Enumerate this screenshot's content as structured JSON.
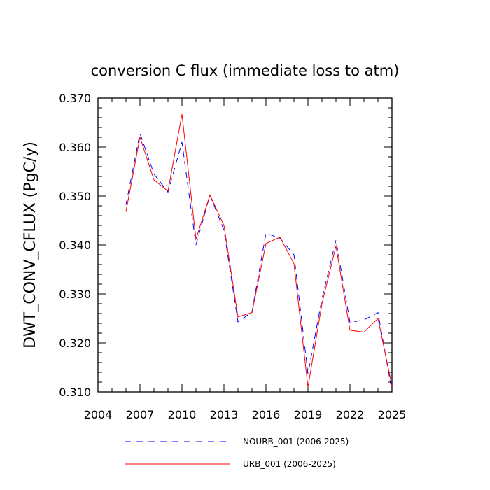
{
  "chart_data": {
    "type": "line",
    "title": "conversion C flux (immediate loss to atm)",
    "xlabel": "",
    "ylabel": "DWT_CONV_CFLUX  (PgC/y)",
    "xlim": [
      2004,
      2025
    ],
    "ylim": [
      0.31,
      0.37
    ],
    "xticks": [
      "2004",
      "2007",
      "2010",
      "2013",
      "2016",
      "2019",
      "2022",
      "2025"
    ],
    "yticks": [
      "0.310",
      "0.320",
      "0.330",
      "0.340",
      "0.350",
      "0.360",
      "0.370"
    ],
    "x": [
      2006,
      2007,
      2008,
      2009,
      2010,
      2011,
      2012,
      2013,
      2014,
      2015,
      2016,
      2017,
      2018,
      2019,
      2020,
      2021,
      2022,
      2023,
      2024,
      2025
    ],
    "series": [
      {
        "name": "NOURB_001 (2006-2025)",
        "color": "#0000ff",
        "dash": "dashed",
        "values": [
          0.3482,
          0.3628,
          0.3545,
          0.3508,
          0.361,
          0.34,
          0.3502,
          0.343,
          0.3243,
          0.3263,
          0.3424,
          0.3414,
          0.338,
          0.3137,
          0.329,
          0.341,
          0.3242,
          0.3247,
          0.3262,
          0.3102
        ]
      },
      {
        "name": "URB_001 (2006-2025)",
        "color": "#ff0000",
        "dash": "solid",
        "values": [
          0.3468,
          0.362,
          0.3533,
          0.351,
          0.3667,
          0.3412,
          0.3502,
          0.344,
          0.3253,
          0.3262,
          0.3403,
          0.3416,
          0.3362,
          0.311,
          0.328,
          0.3398,
          0.3226,
          0.3222,
          0.325,
          0.3112
        ]
      }
    ],
    "grid": false,
    "legend_position": "bottom"
  }
}
